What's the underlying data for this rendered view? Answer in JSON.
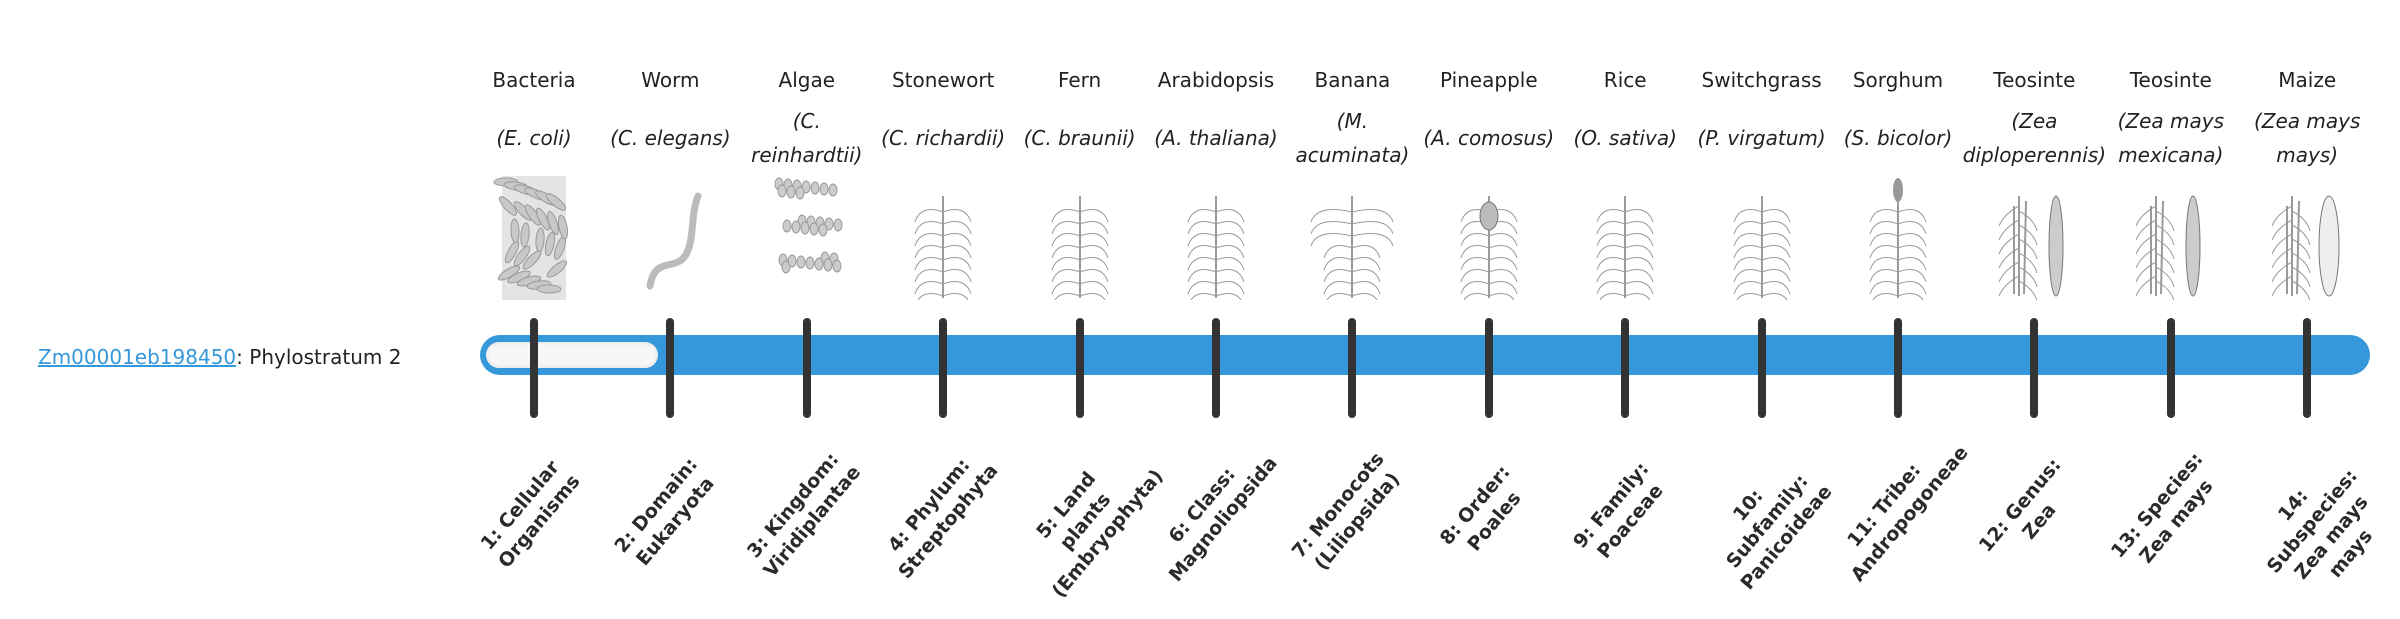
{
  "gene": {
    "id": "Zm00001eb198450",
    "suffix": ": Phylostratum 2"
  },
  "progress": {
    "phylostratum": 2,
    "total": 14,
    "bar_color": "#3598db",
    "track_color": "#f6f6f6"
  },
  "organisms": [
    {
      "common": "Bacteria",
      "scientific": "(E. coli)",
      "icon": "bacteria-image",
      "stratum": "1: Cellular Organisms"
    },
    {
      "common": "Worm",
      "scientific": "(C. elegans)",
      "icon": "worm-image",
      "stratum": "2: Domain: Eukaryota"
    },
    {
      "common": "Algae",
      "scientific": "(C. reinhardtii)",
      "icon": "algae-image",
      "stratum": "3: Kingdom: Viridiplantae"
    },
    {
      "common": "Stonewort",
      "scientific": "(C. richardii)",
      "icon": "stonewort-image",
      "stratum": "4: Phylum: Streptophyta"
    },
    {
      "common": "Fern",
      "scientific": "(C. braunii)",
      "icon": "fern-image",
      "stratum": "5: Land plants (Embryophyta)"
    },
    {
      "common": "Arabidopsis",
      "scientific": "(A. thaliana)",
      "icon": "arabidopsis-image",
      "stratum": "6: Class: Magnoliopsida"
    },
    {
      "common": "Banana",
      "scientific": "(M. acuminata)",
      "icon": "banana-image",
      "stratum": "7: Monocots (Liliopsida)"
    },
    {
      "common": "Pineapple",
      "scientific": "(A. comosus)",
      "icon": "pineapple-image",
      "stratum": "8: Order: Poales"
    },
    {
      "common": "Rice",
      "scientific": "(O. sativa)",
      "icon": "rice-image",
      "stratum": "9: Family: Poaceae"
    },
    {
      "common": "Switchgrass",
      "scientific": "(P. virgatum)",
      "icon": "switchgrass-image",
      "stratum": "10: Subfamily: Panicoideae"
    },
    {
      "common": "Sorghum",
      "scientific": "(S. bicolor)",
      "icon": "sorghum-image",
      "stratum": "11: Tribe: Andropogoneae"
    },
    {
      "common": "Teosinte",
      "scientific": "(Zea diploperennis)",
      "icon": "teosinte-image",
      "stratum": "12: Genus: Zea"
    },
    {
      "common": "Teosinte",
      "scientific": "(Zea mays mexicana)",
      "icon": "teosinte-image",
      "stratum": "13: Species: Zea mays"
    },
    {
      "common": "Maize",
      "scientific": "(Zea mays mays)",
      "icon": "maize-image",
      "stratum": "14: Subspecies: Zea mays mays"
    }
  ]
}
